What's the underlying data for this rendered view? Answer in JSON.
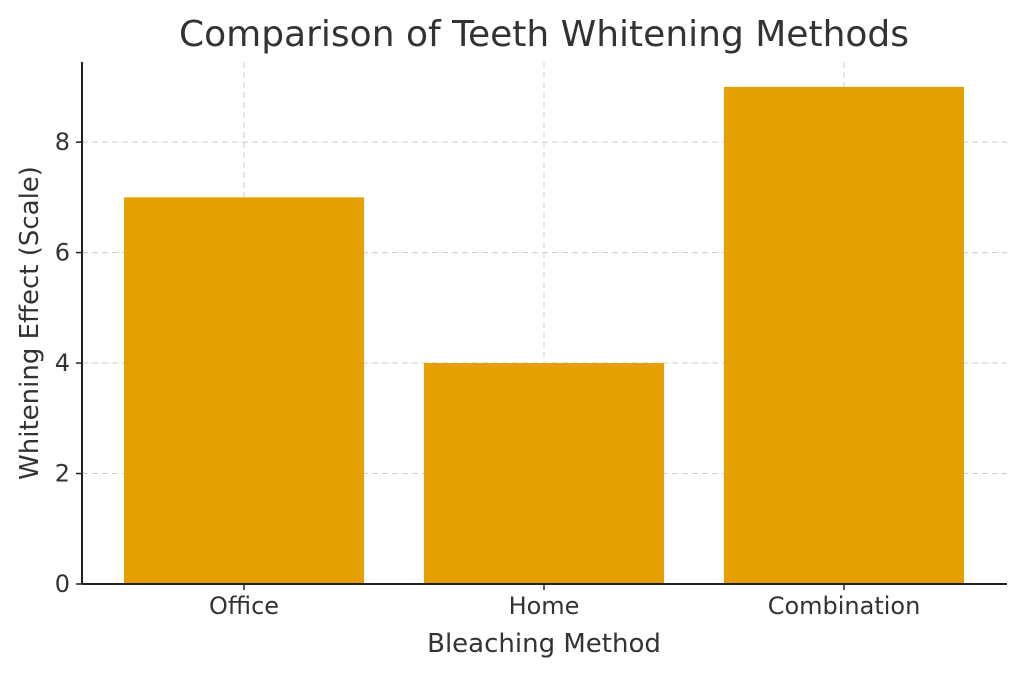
{
  "chart_data": {
    "type": "bar",
    "title": "Comparison of Teeth Whitening Methods",
    "xlabel": "Bleaching Method",
    "ylabel": "Whitening Effect (Scale)",
    "categories": [
      "Office",
      "Home",
      "Combination"
    ],
    "values": [
      7,
      4,
      9
    ],
    "ylim": [
      0,
      9.45
    ],
    "yticks": [
      0,
      2,
      4,
      6,
      8
    ],
    "grid": true,
    "bar_color": "#E5A000"
  }
}
